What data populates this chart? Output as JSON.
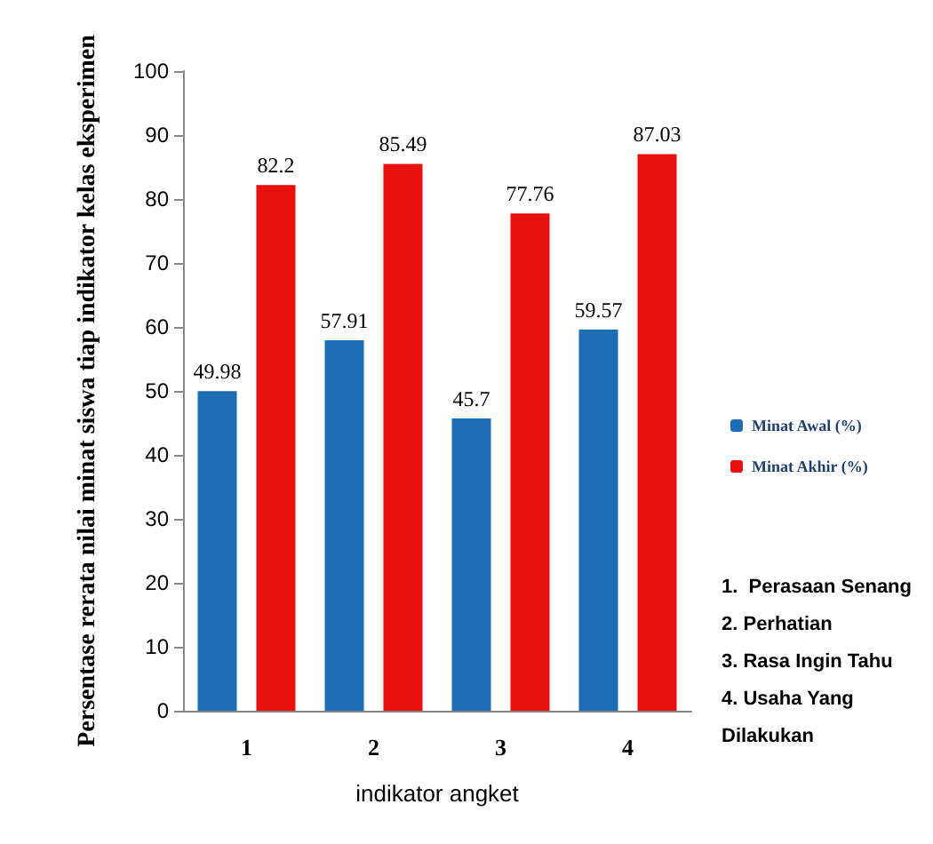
{
  "chart_data": {
    "type": "bar",
    "xlabel": "indikator angket",
    "ylabel": "Persentase rerata nilai minat siswa tiap indikator kelas eksperimen",
    "categories": [
      "1",
      "2",
      "3",
      "4"
    ],
    "series": [
      {
        "name": "Minat Awal (%)",
        "color": "#1f6db5",
        "values": [
          49.98,
          57.91,
          45.7,
          59.57
        ]
      },
      {
        "name": "Minat Akhir (%)",
        "color": "#e8110f",
        "values": [
          82.2,
          85.49,
          77.76,
          87.03
        ]
      }
    ],
    "ylim": [
      0,
      100
    ],
    "yticks": [
      0,
      10,
      20,
      30,
      40,
      50,
      60,
      70,
      80,
      90,
      100
    ],
    "grid": false,
    "legend": "right",
    "data_labels": true,
    "annotations": [
      "1.  Perasaan Senang",
      "2. Perhatian",
      "3. Rasa Ingin Tahu",
      "4. Usaha Yang Dilakukan"
    ]
  }
}
